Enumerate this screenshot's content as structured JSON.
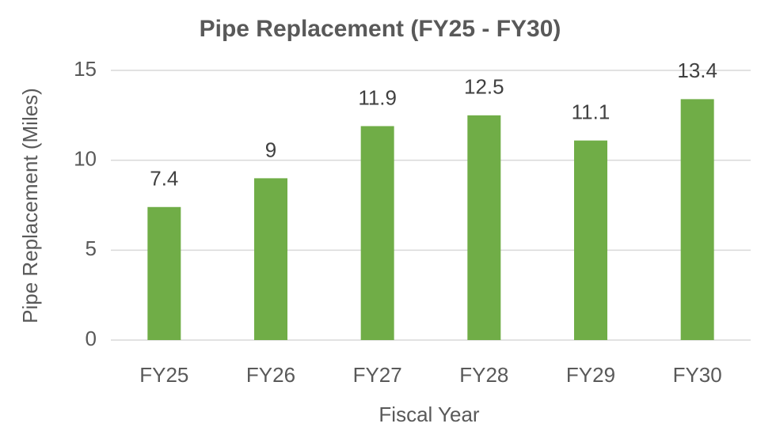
{
  "chart_data": {
    "type": "bar",
    "title": "Pipe Replacement (FY25 - FY30)",
    "x_label": "Fiscal Year",
    "y_label": "Pipe Replacement (Miles)",
    "categories": [
      "FY25",
      "FY26",
      "FY27",
      "FY28",
      "FY29",
      "FY30"
    ],
    "values": [
      7.4,
      9,
      11.9,
      12.5,
      11.1,
      13.4
    ],
    "color": "#70ad47",
    "ylim": [
      0,
      15
    ],
    "yticks": [
      0,
      5,
      10,
      15
    ],
    "grid": true
  }
}
